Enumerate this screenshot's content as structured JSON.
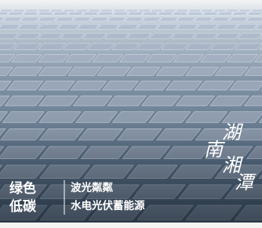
{
  "headline": {
    "line1": "绿色",
    "line2": "低碳"
  },
  "tagline": {
    "line1": "波光粼粼",
    "line2": "水电光伏蓄能源"
  },
  "calligraphy": [
    "湖",
    "南",
    "湘",
    "潭"
  ]
}
